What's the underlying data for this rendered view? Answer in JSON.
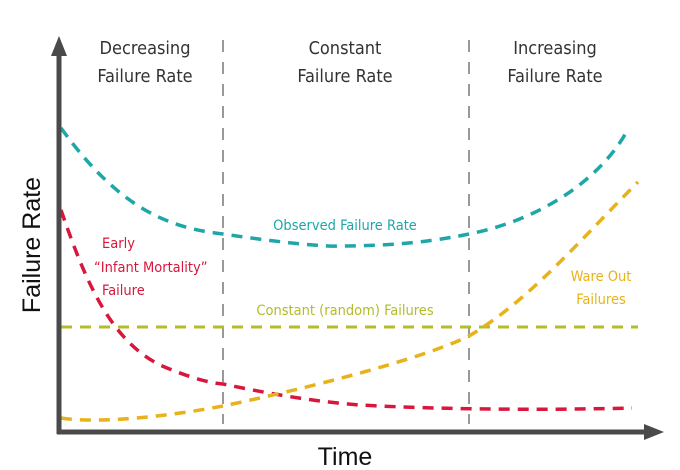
{
  "regions": [
    {
      "line1": "Decreasing",
      "line2": "Failure Rate"
    },
    {
      "line1": "Constant",
      "line2": "Failure Rate"
    },
    {
      "line1": "Increasing",
      "line2": "Failure Rate"
    }
  ],
  "axes": {
    "x_title": "Time",
    "y_title": "Failure Rate"
  },
  "curves": {
    "observed": {
      "label": "Observed Failure Rate",
      "color": "#1ea6a8"
    },
    "infant": {
      "label_lines": [
        "Early",
        "“Infant Mortality”",
        "Failure"
      ],
      "color": "#d8173c"
    },
    "constant": {
      "label": "Constant (random) Failures",
      "color": "#b1bd2a"
    },
    "wearout": {
      "label_lines": [
        "Ware Out",
        "Failures"
      ],
      "color": "#e8b21a"
    }
  },
  "colors": {
    "axis": "#4a4a4a",
    "divider": "#999999"
  }
}
